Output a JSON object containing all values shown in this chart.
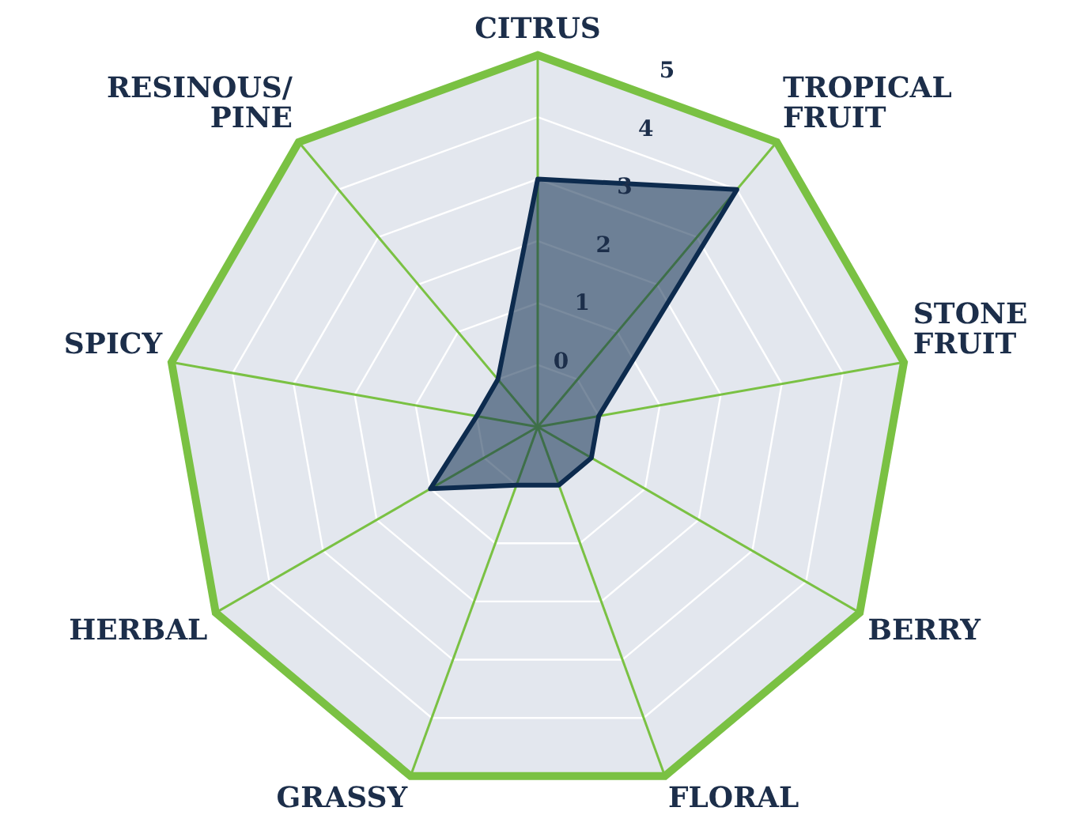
{
  "chart_data": {
    "type": "radar",
    "categories": [
      "CITRUS",
      "TROPICAL\nFRUIT",
      "STONE\nFRUIT",
      "BERRY",
      "FLORAL",
      "GRASSY",
      "HERBAL",
      "SPICY",
      "RESINOUS/\nPINE"
    ],
    "series": [
      {
        "color": "#0d2b4e",
        "values": [
          3,
          4,
          0,
          0,
          0,
          0,
          1,
          0,
          0
        ]
      }
    ],
    "ylim": [
      -1,
      5
    ],
    "yticks": [
      0,
      1,
      2,
      3,
      4,
      5
    ],
    "grid": true,
    "legend": false
  }
}
